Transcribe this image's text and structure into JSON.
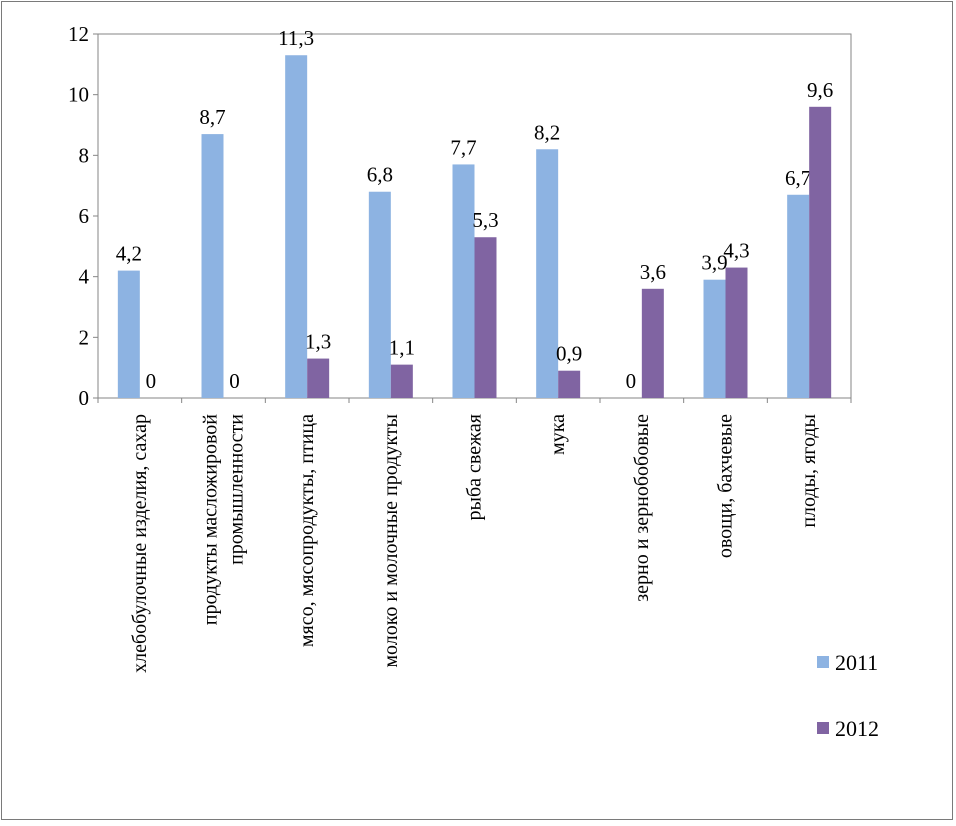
{
  "chart_data": {
    "type": "bar",
    "categories": [
      [
        "хлебобулочные изделия, сахар"
      ],
      [
        "продукты масложировой",
        "промышленности"
      ],
      [
        "мясо, мясопродукты, птица"
      ],
      [
        "молоко и молочные продукты"
      ],
      [
        "рыба свежая"
      ],
      [
        "мука"
      ],
      [
        "зерно и зернобобовые"
      ],
      [
        "овощи, бахчевые"
      ],
      [
        "плоды, ягоды"
      ]
    ],
    "series": [
      {
        "name": "2011",
        "color": "#8db3e2",
        "values": [
          4.2,
          8.7,
          11.3,
          6.8,
          7.7,
          8.2,
          0,
          3.9,
          6.7
        ],
        "labels": [
          "4,2",
          "8,7",
          "11,3",
          "6,8",
          "7,7",
          "8,2",
          "0",
          "3,9",
          "6,7"
        ]
      },
      {
        "name": "2012",
        "color": "#8064a2",
        "values": [
          0,
          0,
          1.3,
          1.1,
          5.3,
          0.9,
          3.6,
          4.3,
          9.6
        ],
        "labels": [
          "0",
          "0",
          "1,3",
          "1,1",
          "5,3",
          "0,9",
          "3,6",
          "4,3",
          "9,6"
        ]
      }
    ],
    "ylim": [
      0,
      12
    ],
    "yticks": [
      0,
      2,
      4,
      6,
      8,
      10,
      12
    ],
    "ytick_labels": [
      "0",
      "2",
      "4",
      "6",
      "8",
      "10",
      "12"
    ],
    "grid": false,
    "legend_position": "right"
  }
}
